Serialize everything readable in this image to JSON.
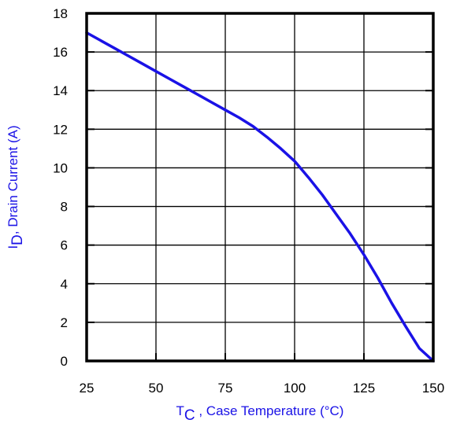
{
  "chart_data": {
    "type": "line",
    "xlabel_main": "T",
    "xlabel_sub": "C",
    "xlabel_rest": " , Case Temperature (°C)",
    "ylabel_main": "I",
    "ylabel_sub": "D",
    "ylabel_rest": ",  Drain Current (A)",
    "xlim": [
      25,
      150
    ],
    "ylim": [
      0,
      18
    ],
    "x_ticks": [
      25,
      50,
      75,
      100,
      125,
      150
    ],
    "y_ticks": [
      0,
      2,
      4,
      6,
      8,
      10,
      12,
      14,
      16,
      18
    ],
    "grid": true,
    "colors": {
      "line": "#1a12e6",
      "label": "#1a12e6",
      "grid": "#000000"
    },
    "series": [
      {
        "x": [
          25,
          30,
          35,
          40,
          45,
          50,
          55,
          60,
          65,
          70,
          75,
          80,
          85,
          90,
          95,
          100,
          105,
          110,
          115,
          120,
          125,
          130,
          135,
          140,
          145,
          150
        ],
        "y": [
          17.0,
          16.6,
          16.2,
          15.8,
          15.4,
          15.0,
          14.6,
          14.2,
          13.8,
          13.4,
          13.0,
          12.6,
          12.15,
          11.6,
          11.0,
          10.35,
          9.5,
          8.6,
          7.6,
          6.6,
          5.5,
          4.3,
          3.0,
          1.8,
          0.65,
          0
        ]
      }
    ]
  }
}
